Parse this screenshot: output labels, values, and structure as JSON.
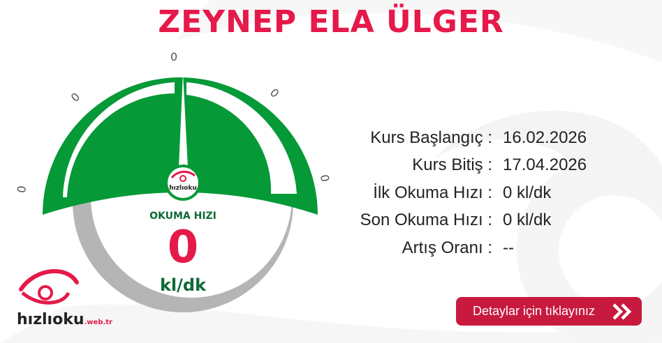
{
  "title": "ZEYNEP ELA ÜLGER",
  "gauge": {
    "tick_labels": [
      "0",
      "0",
      "0",
      "0",
      "0"
    ],
    "caption": "OKUMA HIZI",
    "value": "0",
    "unit": "kl/dk",
    "logo": "hızlıoku .web.tr"
  },
  "info": [
    {
      "label": "Kurs Başlangıç :",
      "value": "16.02.2026"
    },
    {
      "label": "Kurs Bitiş :",
      "value": "17.04.2026"
    },
    {
      "label": "İlk Okuma Hızı :",
      "value": "0 kl/dk"
    },
    {
      "label": "Son Okuma Hızı :",
      "value": "0 kl/dk"
    },
    {
      "label": "Artış Oranı :",
      "value": "--"
    }
  ],
  "details_button": {
    "label": "Detaylar için tıklayınız",
    "icon": "double-chevron-right-icon"
  },
  "brand": {
    "name": "hızlıoku",
    "suffix": ".web.tr"
  },
  "colors": {
    "accent_red": "#e5194a",
    "gauge_green": "#069937",
    "button_red": "#c8193f",
    "text_green": "#0e6a37"
  }
}
